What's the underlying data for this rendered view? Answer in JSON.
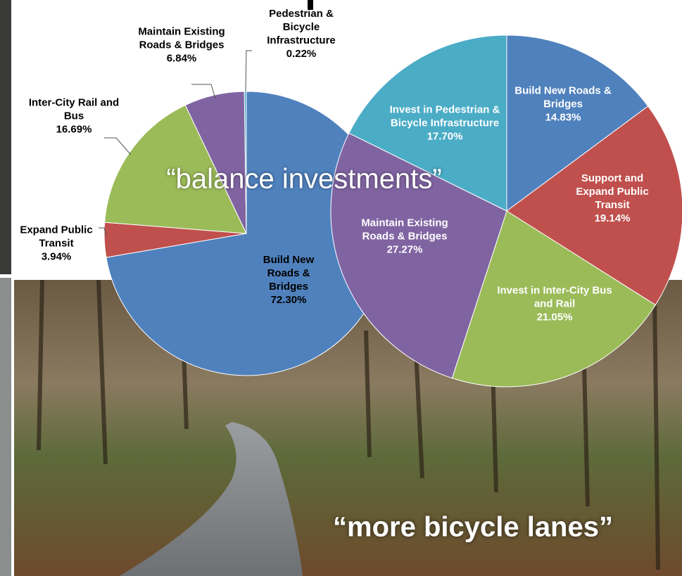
{
  "chart_data": [
    {
      "type": "pie",
      "categories": [
        "Build New Roads & Bridges",
        "Expand Public Transit",
        "Inter-City Rail and Bus",
        "Maintain Existing Roads & Bridges",
        "Pedestrian & Bicycle Infrastructure"
      ],
      "values": [
        72.3,
        3.94,
        16.69,
        6.84,
        0.22
      ],
      "value_labels": [
        "72.30%",
        "3.94%",
        "16.69%",
        "6.84%",
        "0.22%"
      ],
      "colors": [
        "#4f81bd",
        "#c0504d",
        "#9bbb59",
        "#8064a2",
        "#4bacc6"
      ]
    },
    {
      "type": "pie",
      "categories": [
        "Build New Roads & Bridges",
        "Support and Expand Public Transit",
        "Invest in Inter-City Bus and Rail",
        "Maintain Existing Roads & Bridges",
        "Invest in Pedestrian & Bicycle Infrastructure"
      ],
      "values": [
        14.83,
        19.14,
        21.05,
        27.27,
        17.7
      ],
      "value_labels": [
        "14.83%",
        "19.14%",
        "21.05%",
        "27.27%",
        "17.70%"
      ],
      "colors": [
        "#4f81bd",
        "#c0504d",
        "#9bbb59",
        "#8064a2",
        "#4bacc6"
      ]
    }
  ],
  "annotations": [
    "“balance investments”",
    "“more bicycle lanes”"
  ]
}
